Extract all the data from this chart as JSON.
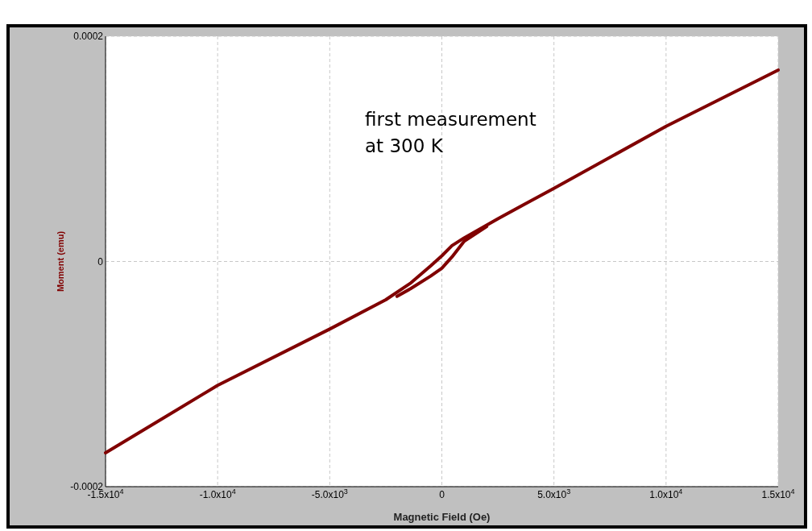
{
  "chart_data": {
    "type": "line",
    "xlabel": "Magnetic Field (Oe)",
    "ylabel": "Moment (emu)",
    "annotations": [
      "first measurement\nat 300 K"
    ],
    "x": [
      -15000,
      -10000,
      -5000,
      -2500,
      -1380,
      -500,
      0,
      450,
      1000,
      2500,
      5000,
      10000,
      15000
    ],
    "series": [
      {
        "color": "#800000",
        "values": [
          -0.00017,
          -0.00011,
          -6e-05,
          -3.4e-05,
          -1.9e-05,
          -4e-06,
          5e-06,
          1.4e-05,
          2.1e-05,
          3.8e-05,
          6.5e-05,
          0.00012,
          0.00017
        ]
      },
      {
        "color": "#800000",
        "x": [
          -2000,
          -1380,
          -500,
          0,
          450,
          1000,
          2000
        ],
        "values": [
          -3.1e-05,
          -2.4e-05,
          -1.3e-05,
          -6e-06,
          4e-06,
          1.8e-05,
          3.1e-05
        ]
      }
    ],
    "xlim": [
      -15000,
      15000
    ],
    "ylim": [
      -0.0002,
      0.0002
    ],
    "xticks": [
      {
        "value": -15000,
        "label": "-1.5x10$^{4}$"
      },
      {
        "value": -10000,
        "label": "-1.0x10$^{4}$"
      },
      {
        "value": -5000,
        "label": "-5.0x10$^{3}$"
      },
      0,
      {
        "value": 5000,
        "label": "5.0x10$^{3}$"
      },
      {
        "value": 10000,
        "label": "1.0x10$^{4}$"
      },
      {
        "value": 15000,
        "label": "1.5x10$^{4}$"
      }
    ],
    "yticks": [
      -0.0002,
      0,
      0.0002
    ],
    "grid": true,
    "marker": "none",
    "line_style": "solid"
  }
}
